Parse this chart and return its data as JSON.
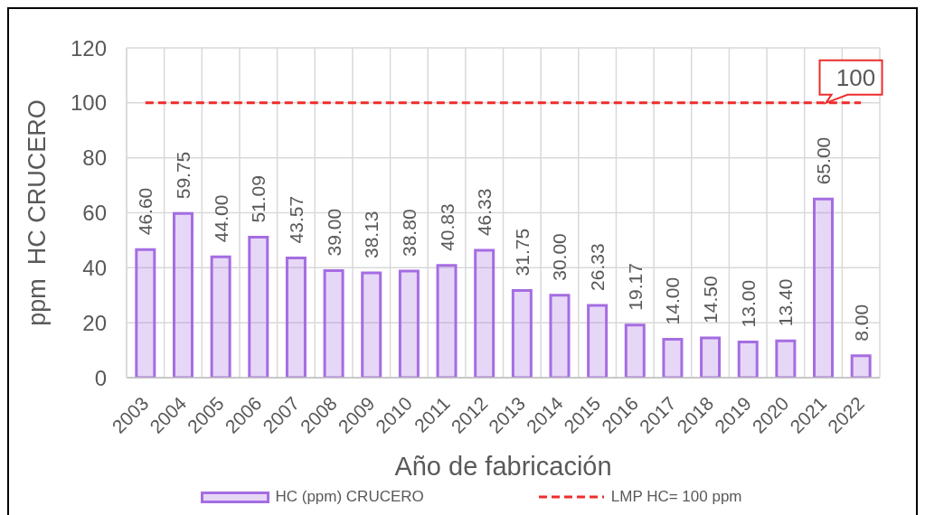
{
  "chart_data": {
    "type": "bar",
    "categories": [
      "2003",
      "2004",
      "2005",
      "2006",
      "2007",
      "2008",
      "2009",
      "2010",
      "2011",
      "2012",
      "2013",
      "2014",
      "2015",
      "2016",
      "2017",
      "2018",
      "2019",
      "2020",
      "2021",
      "2022"
    ],
    "series": [
      {
        "name": "HC (ppm) CRUCERO",
        "color": "#a56de2",
        "values": [
          46.6,
          59.75,
          44.0,
          51.09,
          43.57,
          39.0,
          38.13,
          38.8,
          40.83,
          46.33,
          31.75,
          30.0,
          26.33,
          19.17,
          14.0,
          14.5,
          13.0,
          13.4,
          65.0,
          8.0
        ],
        "value_labels": [
          "46.60",
          "59.75",
          "44.00",
          "51.09",
          "43.57",
          "39.00",
          "38.13",
          "38.80",
          "40.83",
          "46.33",
          "31.75",
          "30.00",
          "26.33",
          "19.17",
          "14.00",
          "14.50",
          "13.00",
          "13.40",
          "65.00",
          "8.00"
        ]
      },
      {
        "name": "LMP HC= 100 ppm",
        "type": "line",
        "color": "#ee2c2c",
        "line_style": "dashed",
        "marker": "none",
        "values": [
          100,
          100,
          100,
          100,
          100,
          100,
          100,
          100,
          100,
          100,
          100,
          100,
          100,
          100,
          100,
          100,
          100,
          100,
          100,
          100
        ],
        "value_labels": [
          null,
          null,
          null,
          null,
          null,
          null,
          null,
          null,
          null,
          null,
          null,
          null,
          null,
          null,
          null,
          null,
          null,
          null,
          "100",
          null
        ]
      }
    ],
    "xlabel": "Año de fabricación",
    "ylabel": "ppm  HC CRUCERO",
    "ylim": [
      0,
      120
    ],
    "yticks": [
      0,
      20,
      40,
      60,
      80,
      100,
      120
    ],
    "grid": true,
    "legend": "bottom"
  }
}
